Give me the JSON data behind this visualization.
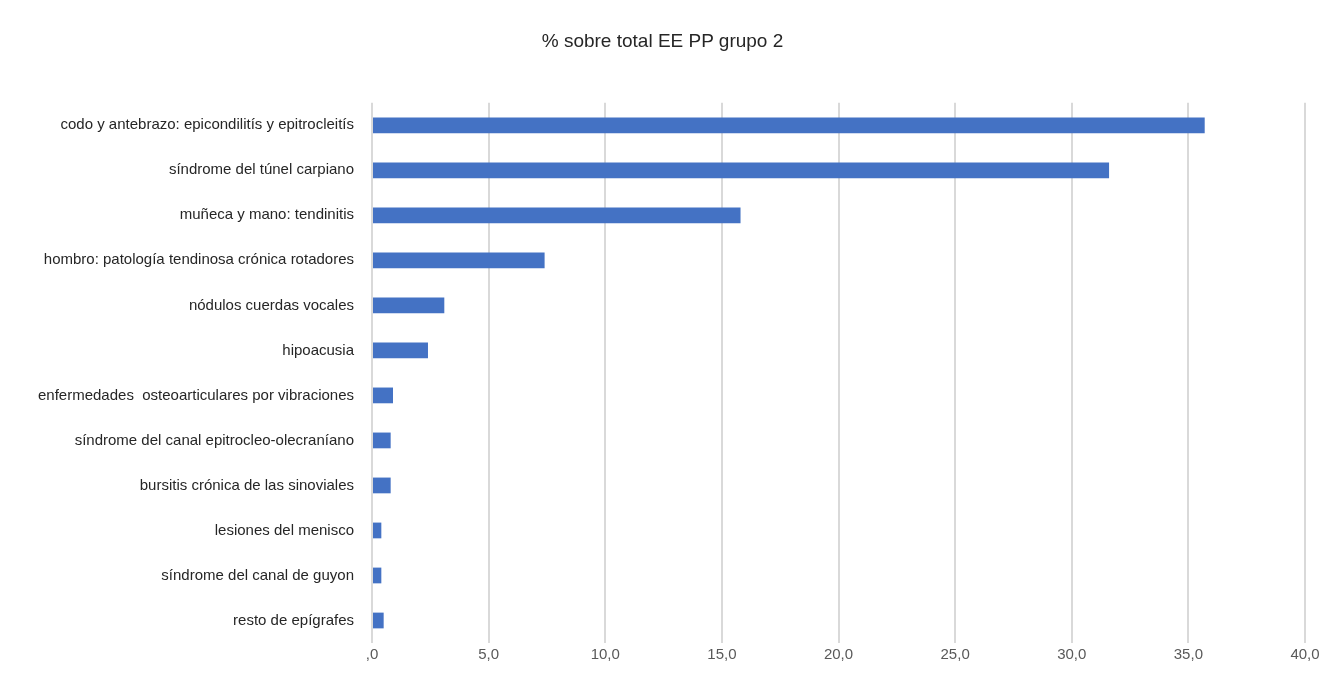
{
  "chart_data": {
    "type": "bar",
    "orientation": "horizontal",
    "title": "% sobre total EE PP grupo 2",
    "categories": [
      "codo y antebrazo: epicondilitís y epitrocleitís",
      "síndrome del túnel carpiano",
      "muñeca y mano: tendinitis",
      "hombro: patología tendinosa crónica rotadores",
      "nódulos cuerdas vocales",
      "hipoacusia",
      "enfermedades  osteoarticulares por vibraciones",
      "síndrome del canal epitrocleo-olecraníano",
      "bursitis crónica de las sinoviales",
      "lesiones del menisco",
      "síndrome del canal de guyon",
      "resto de epígrafes"
    ],
    "values": [
      35.7,
      31.6,
      15.8,
      7.4,
      3.1,
      2.4,
      0.9,
      0.8,
      0.8,
      0.4,
      0.4,
      0.5
    ],
    "color": "#4472c4",
    "xlim": [
      0,
      40
    ],
    "xticks": [
      {
        "value": 0,
        "label": ",0"
      },
      {
        "value": 5,
        "label": "5,0"
      },
      {
        "value": 10,
        "label": "10,0"
      },
      {
        "value": 15,
        "label": "15,0"
      },
      {
        "value": 20,
        "label": "20,0"
      },
      {
        "value": 25,
        "label": "25,0"
      },
      {
        "value": 30,
        "label": "30,0"
      },
      {
        "value": 35,
        "label": "35,0"
      },
      {
        "value": 40,
        "label": "40,0"
      }
    ],
    "grid": "x"
  }
}
